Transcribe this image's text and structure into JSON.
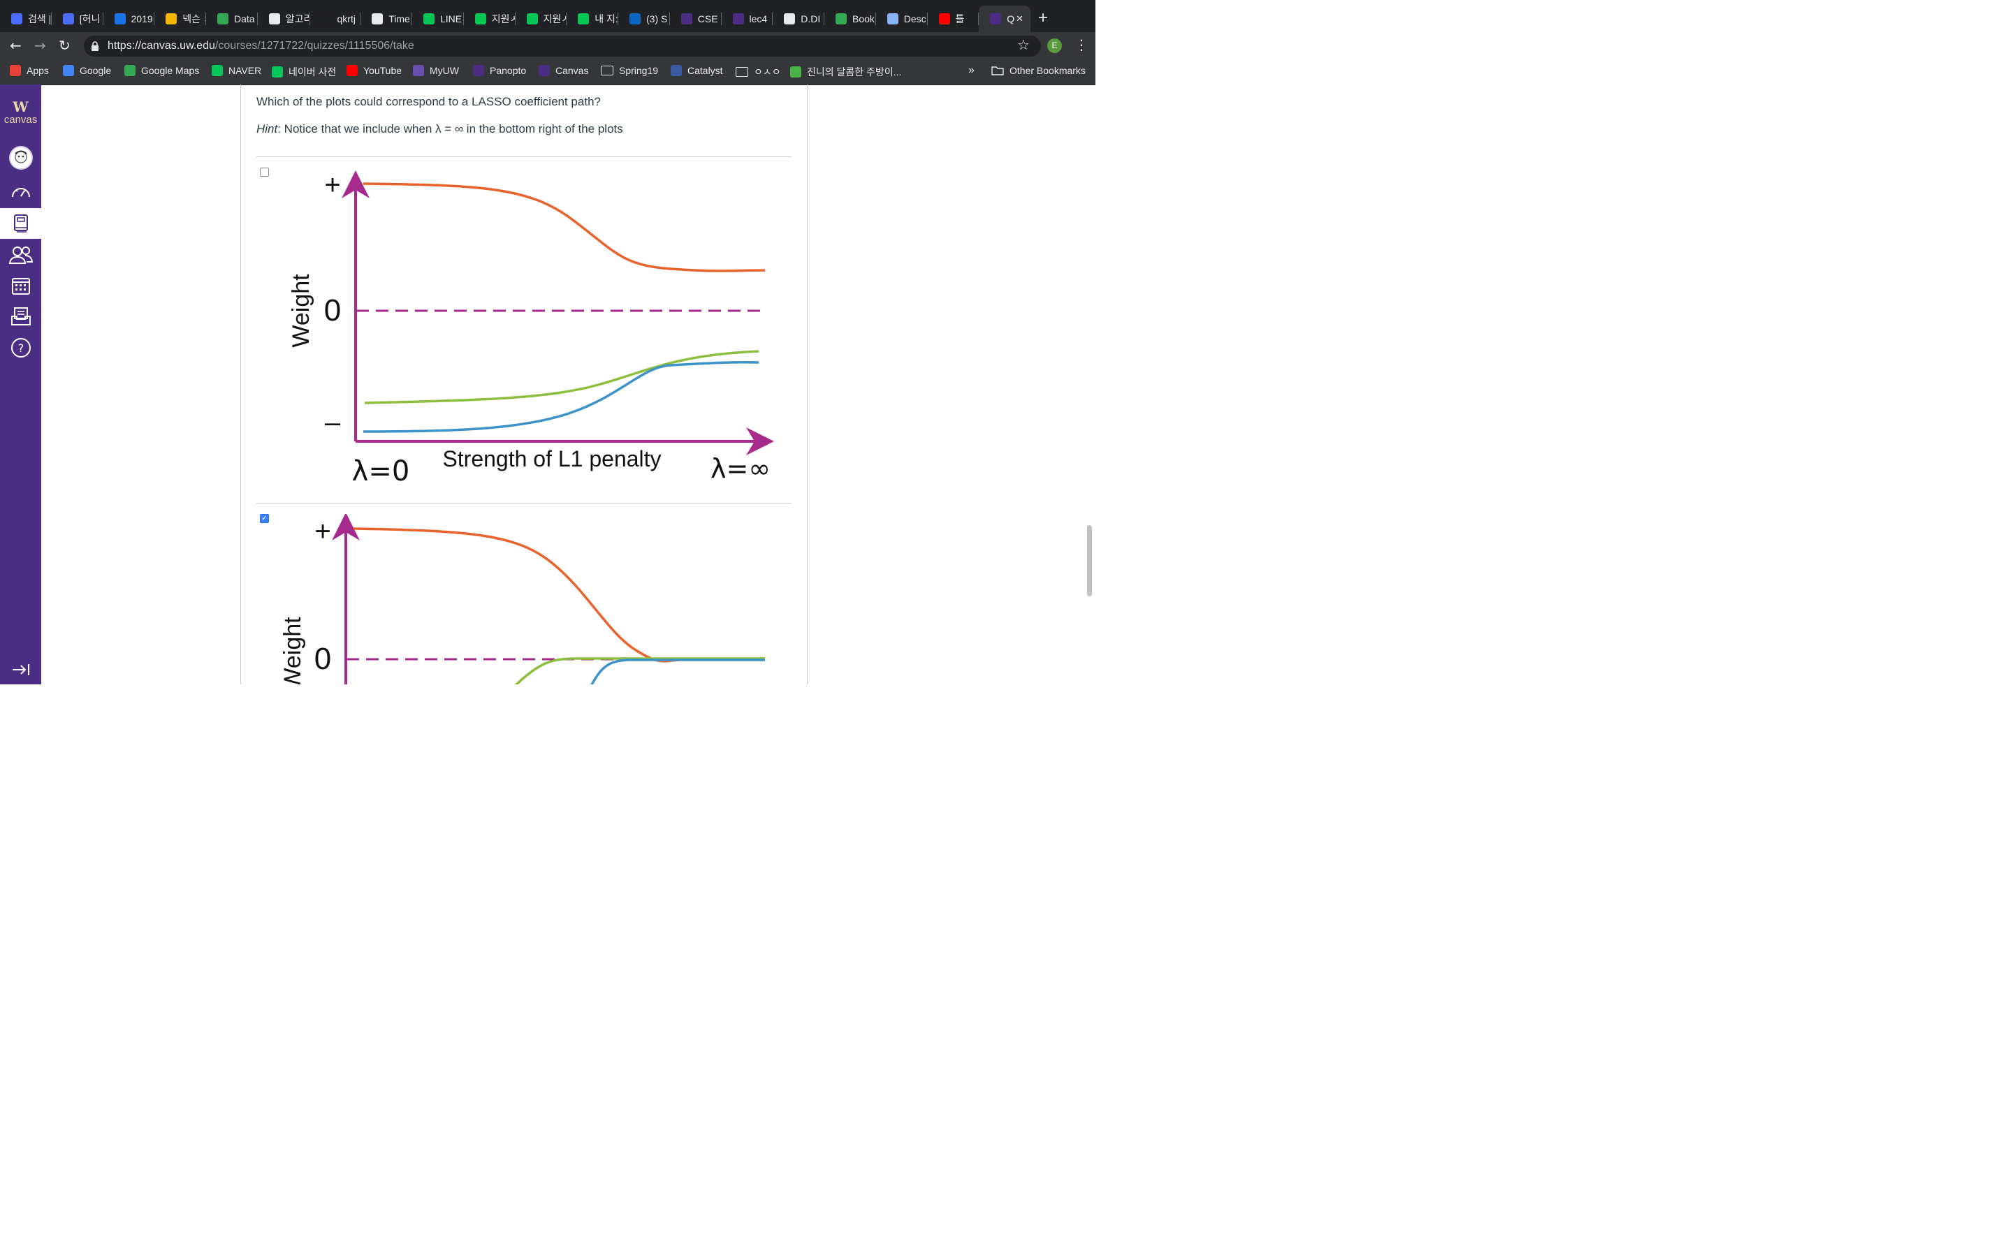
{
  "browser": {
    "tabs": [
      {
        "label": "검색 |",
        "icon": "naver-q-icon",
        "color": "#4a6cf7"
      },
      {
        "label": "[허니",
        "icon": "naver-q-icon",
        "color": "#4a6cf7"
      },
      {
        "label": "2019",
        "icon": "info-icon",
        "color": "#1a73e8"
      },
      {
        "label": "넥슨 ㅊ",
        "icon": "nexon-icon",
        "color": "#f4b400"
      },
      {
        "label": "Data",
        "icon": "phone-icon",
        "color": "#34a853"
      },
      {
        "label": "알고리",
        "icon": "bird-icon",
        "color": "#e8eaed"
      },
      {
        "label": "qkrtj",
        "icon": "github-icon",
        "color": "#202124"
      },
      {
        "label": "Time",
        "icon": "document-icon",
        "color": "#e8eaed"
      },
      {
        "label": "LINE",
        "icon": "line-icon",
        "color": "#06c755"
      },
      {
        "label": "지원ㅅ",
        "icon": "line-icon",
        "color": "#06c755"
      },
      {
        "label": "지원ㅅ",
        "icon": "line-icon",
        "color": "#06c755"
      },
      {
        "label": "내 지:",
        "icon": "line-icon",
        "color": "#06c755"
      },
      {
        "label": "(3) S",
        "icon": "linkedin-icon",
        "color": "#0a66c2"
      },
      {
        "label": "CSE",
        "icon": "uw-w-icon",
        "color": "#4b2e83"
      },
      {
        "label": "lec4",
        "icon": "uw-w-icon",
        "color": "#4b2e83"
      },
      {
        "label": "D.DI",
        "icon": "document-icon",
        "color": "#e8eaed"
      },
      {
        "label": "Book",
        "icon": "sheets-icon",
        "color": "#34a853"
      },
      {
        "label": "Desc",
        "icon": "circles-icon",
        "color": "#8ab4f8"
      },
      {
        "label": "틀",
        "icon": "youtube-icon",
        "color": "#ff0000"
      },
      {
        "label": "Q",
        "icon": "uw-w-icon",
        "color": "#4b2e83"
      }
    ],
    "url_host": "https://canvas.uw.edu",
    "url_path": "/courses/1271722/quizzes/1115506/take",
    "profile_initial": "E",
    "bookmarks": [
      {
        "label": "Apps",
        "icon": "apps-grid-icon"
      },
      {
        "label": "Google",
        "icon": "google-icon"
      },
      {
        "label": "Google Maps",
        "icon": "maps-icon"
      },
      {
        "label": "NAVER",
        "icon": "naver-icon"
      },
      {
        "label": "네이버 사전",
        "icon": "naver-dict-icon"
      },
      {
        "label": "YouTube",
        "icon": "youtube-icon"
      },
      {
        "label": "MyUW",
        "icon": "myuw-icon"
      },
      {
        "label": "Panopto",
        "icon": "uw-w-icon"
      },
      {
        "label": "Canvas",
        "icon": "uw-w-icon"
      },
      {
        "label": "Spring19",
        "icon": "folder-icon"
      },
      {
        "label": "Catalyst",
        "icon": "catalyst-icon"
      },
      {
        "label": "ㅇㅅㅇ",
        "icon": "folder-icon"
      },
      {
        "label": "진니의 달콤한 주방이...",
        "icon": "blog-icon"
      }
    ],
    "overflow_label": "»",
    "other_bookmarks": "Other Bookmarks"
  },
  "sidebar": {
    "logo_letter": "W",
    "logo_text": "canvas",
    "items": [
      "account",
      "dashboard",
      "courses",
      "groups",
      "calendar",
      "inbox",
      "help"
    ]
  },
  "question": {
    "text": "Which of the plots could correspond to a LASSO coefficient path?",
    "hint_label": "Hint",
    "hint_text": ": Notice that we include when λ = ∞ in the bottom right of the plots"
  },
  "colors": {
    "axis": "#a52a8c",
    "orange": "#e8632b",
    "green": "#8dbf3e",
    "blue": "#3d93c9",
    "canvas_purple": "#4b2e83"
  },
  "plots": [
    {
      "checked": false,
      "ylabel": "Weight",
      "plus": "+",
      "zero": "0",
      "minus": "–",
      "xlabel": "Strength of L1 penalty",
      "left_label": "λ=0",
      "right_label": "λ=∞"
    },
    {
      "checked": true,
      "ylabel": "Weight",
      "plus": "+",
      "zero": "0",
      "check_glyph": "✓"
    }
  ]
}
